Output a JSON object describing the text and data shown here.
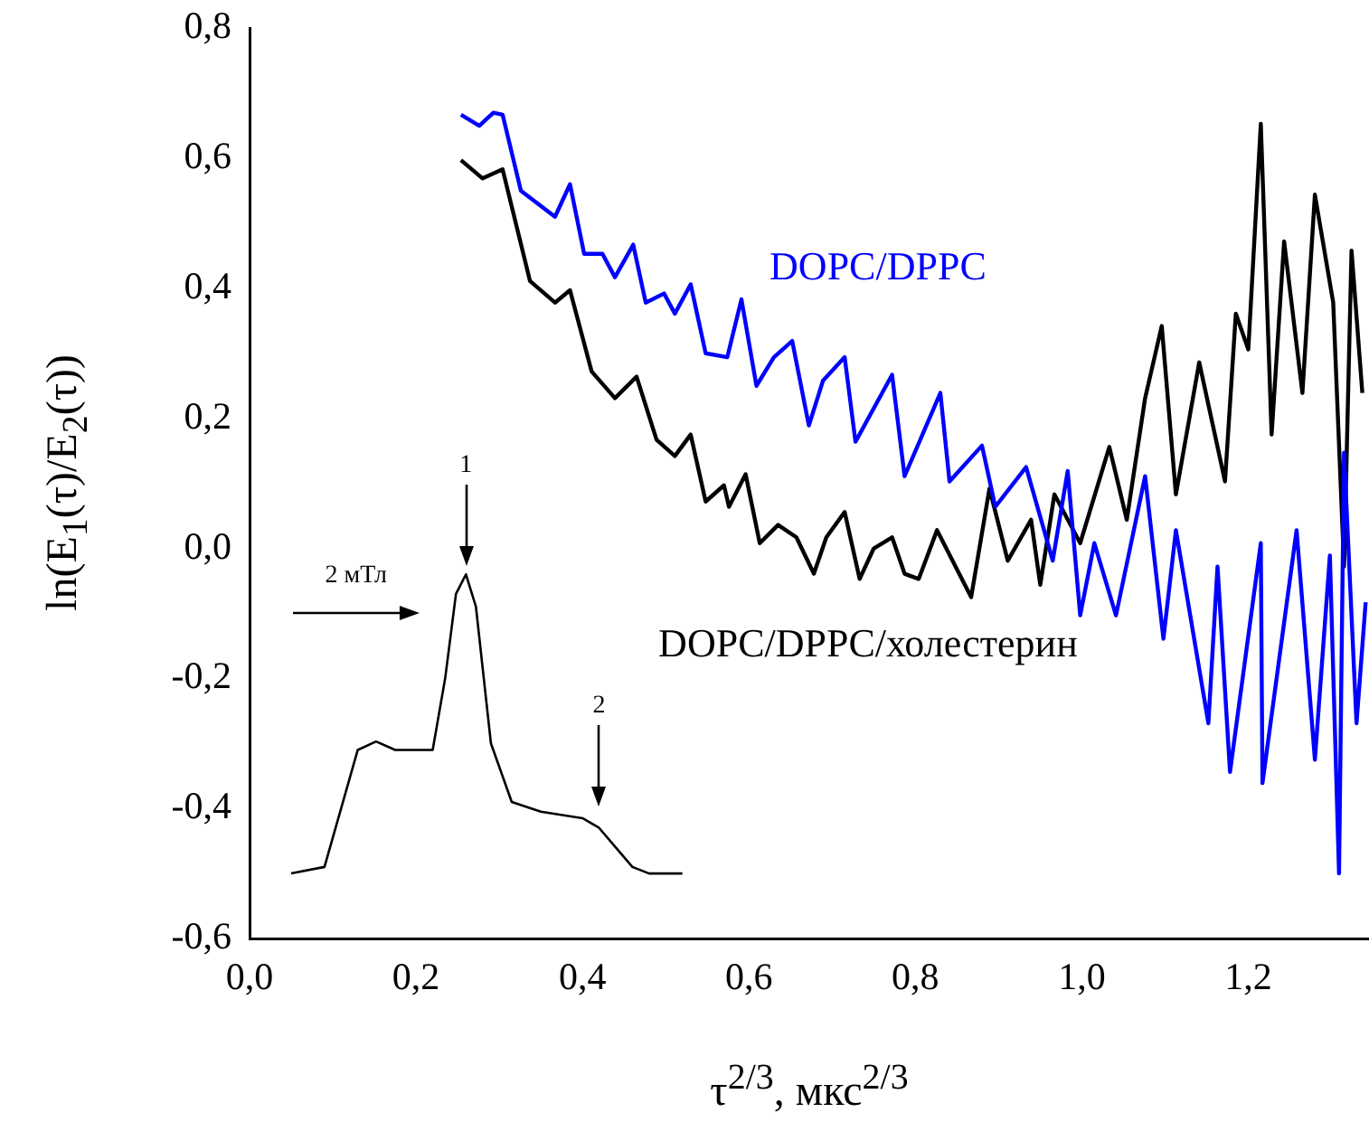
{
  "chart_data": {
    "type": "line",
    "xlabel": "τ$^{2/3}$, мкс$^{2/3}$",
    "ylabel": "ln(E$_{1}$(τ)/E$_{2}$(τ))",
    "xlim": [
      0,
      1.345
    ],
    "xticks": [
      {
        "value": 0,
        "label": "0,0"
      },
      {
        "value": 0.2,
        "label": "0,2"
      },
      {
        "value": 0.4,
        "label": "0,4"
      },
      {
        "value": 0.6,
        "label": "0,6"
      },
      {
        "value": 0.8,
        "label": "0,8"
      },
      {
        "value": 1.0,
        "label": "1,0"
      },
      {
        "value": 1.2,
        "label": "1,2"
      }
    ],
    "ylim": [
      -0.6,
      0.8
    ],
    "yticks": [
      {
        "value": -0.6,
        "label": "-0,6"
      },
      {
        "value": -0.4,
        "label": "-0,4"
      },
      {
        "value": -0.2,
        "label": "-0,2"
      },
      {
        "value": 0,
        "label": "0,0"
      },
      {
        "value": 0.2,
        "label": "0,2"
      },
      {
        "value": 0.4,
        "label": "0,4"
      },
      {
        "value": 0.6,
        "label": "0,6"
      },
      {
        "value": 0.8,
        "label": "0,8"
      }
    ],
    "grid": false,
    "legend": false,
    "marker": "none",
    "line_style": "solid",
    "annotations": [
      "2 мТл",
      "1",
      "2"
    ],
    "series": [
      {
        "name": "DOPC/DPPC",
        "color": "#0000ff",
        "x": [
          0.254,
          0.276,
          0.293,
          0.304,
          0.326,
          0.367,
          0.385,
          0.402,
          0.424,
          0.439,
          0.461,
          0.476,
          0.498,
          0.511,
          0.53,
          0.548,
          0.574,
          0.591,
          0.609,
          0.63,
          0.652,
          0.672,
          0.689,
          0.715,
          0.728,
          0.772,
          0.787,
          0.83,
          0.841,
          0.88,
          0.896,
          0.933,
          0.965,
          0.983,
          0.998,
          1.015,
          1.041,
          1.076,
          1.098,
          1.113,
          1.152,
          1.163,
          1.178,
          1.215,
          1.217,
          1.258,
          1.28,
          1.298,
          1.309,
          1.315,
          1.33,
          1.341
        ],
        "values": [
          0.667,
          0.65,
          0.67,
          0.667,
          0.55,
          0.51,
          0.56,
          0.453,
          0.453,
          0.417,
          0.467,
          0.378,
          0.392,
          0.361,
          0.406,
          0.3,
          0.294,
          0.383,
          0.25,
          0.294,
          0.319,
          0.189,
          0.258,
          0.294,
          0.164,
          0.267,
          0.111,
          0.239,
          0.103,
          0.158,
          0.064,
          0.125,
          -0.019,
          0.119,
          -0.103,
          0.008,
          -0.103,
          0.111,
          -0.139,
          0.028,
          -0.269,
          -0.028,
          -0.344,
          0.008,
          -0.361,
          0.028,
          -0.325,
          -0.011,
          -0.5,
          0.147,
          -0.269,
          -0.083
        ]
      },
      {
        "name": "DOPC/DPPC/холестерин",
        "color": "#000000",
        "x": [
          0.254,
          0.28,
          0.304,
          0.337,
          0.367,
          0.385,
          0.411,
          0.439,
          0.465,
          0.489,
          0.511,
          0.53,
          0.548,
          0.57,
          0.576,
          0.596,
          0.613,
          0.635,
          0.657,
          0.678,
          0.693,
          0.715,
          0.733,
          0.75,
          0.772,
          0.787,
          0.804,
          0.826,
          0.867,
          0.889,
          0.911,
          0.939,
          0.95,
          0.967,
          0.998,
          1.033,
          1.054,
          1.076,
          1.096,
          1.113,
          1.141,
          1.172,
          1.185,
          1.2,
          1.215,
          1.228,
          1.243,
          1.265,
          1.28,
          1.302,
          1.315,
          1.324,
          1.337
        ],
        "values": [
          0.597,
          0.569,
          0.583,
          0.411,
          0.378,
          0.397,
          0.272,
          0.231,
          0.264,
          0.167,
          0.142,
          0.175,
          0.072,
          0.097,
          0.064,
          0.114,
          0.008,
          0.036,
          0.017,
          -0.039,
          0.017,
          0.056,
          -0.047,
          0.0,
          0.017,
          -0.039,
          -0.047,
          0.028,
          -0.075,
          0.092,
          -0.019,
          0.044,
          -0.056,
          0.083,
          0.008,
          0.156,
          0.044,
          0.231,
          0.342,
          0.083,
          0.286,
          0.103,
          0.361,
          0.306,
          0.653,
          0.175,
          0.472,
          0.239,
          0.544,
          0.378,
          -0.028,
          0.458,
          0.239
        ]
      },
      {
        "color": "#000000",
        "x": [
          0.05,
          0.09,
          0.11,
          0.13,
          0.152,
          0.175,
          0.2,
          0.22,
          0.235,
          0.248,
          0.26,
          0.272,
          0.29,
          0.315,
          0.35,
          0.4,
          0.42,
          0.44,
          0.46,
          0.48,
          0.52
        ],
        "values": [
          -0.5,
          -0.49,
          -0.4,
          -0.31,
          -0.297,
          -0.31,
          -0.31,
          -0.31,
          -0.2,
          -0.07,
          -0.04,
          -0.09,
          -0.3,
          -0.39,
          -0.405,
          -0.415,
          -0.43,
          -0.46,
          -0.49,
          -0.5,
          -0.5
        ]
      }
    ]
  }
}
